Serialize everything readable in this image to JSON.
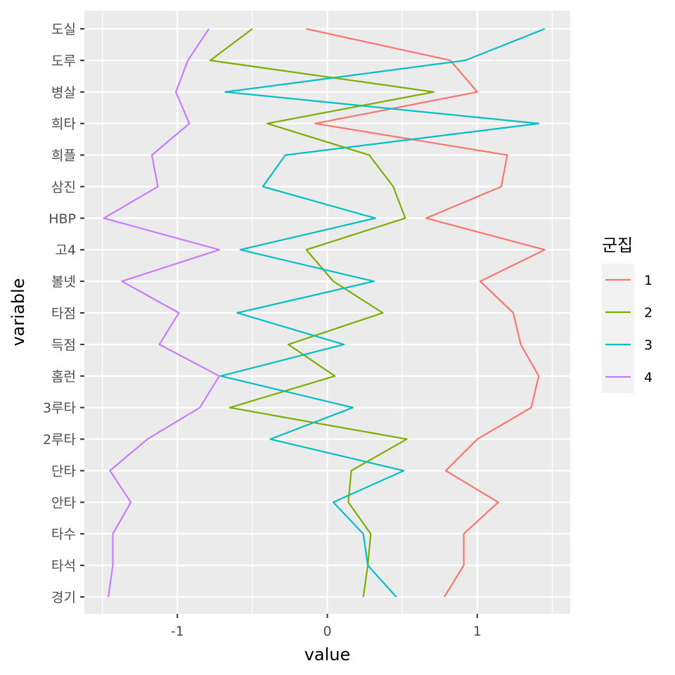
{
  "chart_data": {
    "type": "line",
    "xlabel": "value",
    "ylabel": "variable",
    "xlim": [
      -1.62,
      1.62
    ],
    "x_ticks": [
      -1,
      0,
      1
    ],
    "x_tick_labels": [
      "-1",
      "0",
      "1"
    ],
    "categories": [
      "경기",
      "타석",
      "타수",
      "안타",
      "단타",
      "2루타",
      "3루타",
      "홈런",
      "득점",
      "타점",
      "볼넷",
      "고4",
      "HBP",
      "삼진",
      "희플",
      "희타",
      "병살",
      "도루",
      "도실"
    ],
    "legend": {
      "title": "군집",
      "position": "right"
    },
    "grid": true,
    "series": [
      {
        "name": "1",
        "color": "#F8766D",
        "values": [
          0.78,
          0.91,
          0.91,
          1.14,
          0.79,
          1.0,
          1.36,
          1.41,
          1.29,
          1.24,
          1.02,
          1.45,
          0.66,
          1.16,
          1.2,
          -0.08,
          1.0,
          0.82,
          -0.14
        ]
      },
      {
        "name": "2",
        "color": "#7CAE00",
        "values": [
          0.24,
          0.27,
          0.29,
          0.14,
          0.16,
          0.53,
          -0.65,
          0.05,
          -0.26,
          0.37,
          0.04,
          -0.14,
          0.52,
          0.44,
          0.28,
          -0.4,
          0.71,
          -0.78,
          -0.5
        ]
      },
      {
        "name": "3",
        "color": "#00BFC4",
        "values": [
          0.46,
          0.27,
          0.24,
          0.04,
          0.51,
          -0.38,
          0.17,
          -0.71,
          0.11,
          -0.6,
          0.31,
          -0.58,
          0.32,
          -0.43,
          -0.28,
          1.41,
          -0.68,
          0.92,
          1.45
        ]
      },
      {
        "name": "4",
        "color": "#C77CFF",
        "values": [
          -1.46,
          -1.43,
          -1.43,
          -1.31,
          -1.45,
          -1.2,
          -0.85,
          -0.72,
          -1.12,
          -0.99,
          -1.37,
          -0.72,
          -1.49,
          -1.13,
          -1.17,
          -0.92,
          -1.01,
          -0.93,
          -0.79
        ]
      }
    ]
  }
}
